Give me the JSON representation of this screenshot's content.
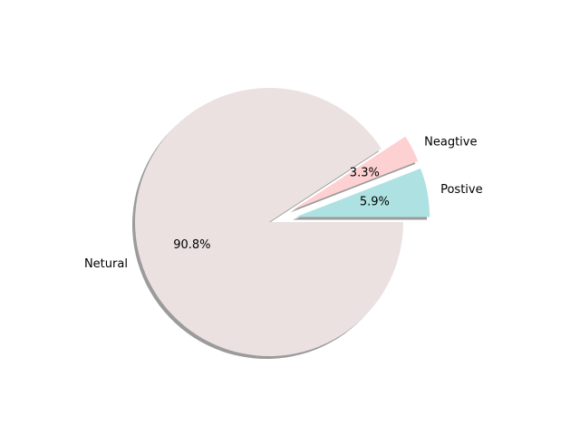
{
  "chart_data": {
    "type": "pie",
    "title": "",
    "labels": [
      "Postive",
      "Neagtive",
      "Netural"
    ],
    "values": [
      5.9,
      3.3,
      90.8
    ],
    "pct_labels": [
      "5.9%",
      "3.3%",
      "90.8%"
    ],
    "explode": [
      0.2,
      0.2,
      0.0
    ],
    "colors": [
      "#aee2e2",
      "#fdd0d2",
      "#ebe1e1"
    ],
    "shadow": true,
    "start_angle_deg": 0,
    "direction": "counterclockwise",
    "legend": "none"
  }
}
